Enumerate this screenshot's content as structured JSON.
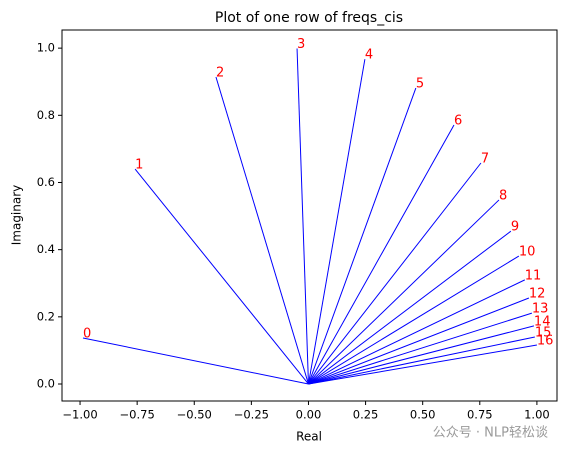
{
  "chart_data": {
    "type": "segments",
    "title": "Plot of one row of freqs_cis",
    "x_label": "Real",
    "y_label": "Imaginary",
    "labels": [
      "0",
      "1",
      "2",
      "3",
      "4",
      "5",
      "6",
      "7",
      "8",
      "9",
      "10",
      "11",
      "12",
      "13",
      "14",
      "15",
      "16"
    ],
    "x": [
      -0.987,
      -0.759,
      -0.405,
      -0.05,
      0.247,
      0.47,
      0.637,
      0.755,
      0.834,
      0.886,
      0.921,
      0.947,
      0.965,
      0.978,
      0.987,
      0.991,
      1.0
    ],
    "y": [
      0.137,
      0.64,
      0.914,
      0.999,
      0.967,
      0.881,
      0.771,
      0.658,
      0.548,
      0.455,
      0.381,
      0.31,
      0.256,
      0.211,
      0.173,
      0.14,
      0.116
    ],
    "color": "#0000ff",
    "label_color": "#ff0000",
    "xlim": [
      -1.079,
      1.088
    ],
    "ylim": [
      -0.0506,
      1.054
    ],
    "xticks": [
      {
        "value": -1,
        "label": "−1.00"
      },
      {
        "value": -0.75,
        "label": "−0.75"
      },
      {
        "value": -0.5,
        "label": "−0.50"
      },
      {
        "value": -0.25,
        "label": "−0.25"
      },
      {
        "value": 0,
        "label": "0.00"
      },
      {
        "value": 0.25,
        "label": "0.25"
      },
      {
        "value": 0.5,
        "label": "0.50"
      },
      {
        "value": 0.75,
        "label": "0.75"
      },
      {
        "value": 1,
        "label": "1.00"
      }
    ],
    "yticks": [
      {
        "value": 0,
        "label": "0.0"
      },
      {
        "value": 0.2,
        "label": "0.2"
      },
      {
        "value": 0.4,
        "label": "0.4"
      },
      {
        "value": 0.6,
        "label": "0.6"
      },
      {
        "value": 0.8,
        "label": "0.8"
      },
      {
        "value": 1,
        "label": "1.0"
      }
    ],
    "grid": false
  },
  "watermark": "公众号 · NLP轻松谈"
}
